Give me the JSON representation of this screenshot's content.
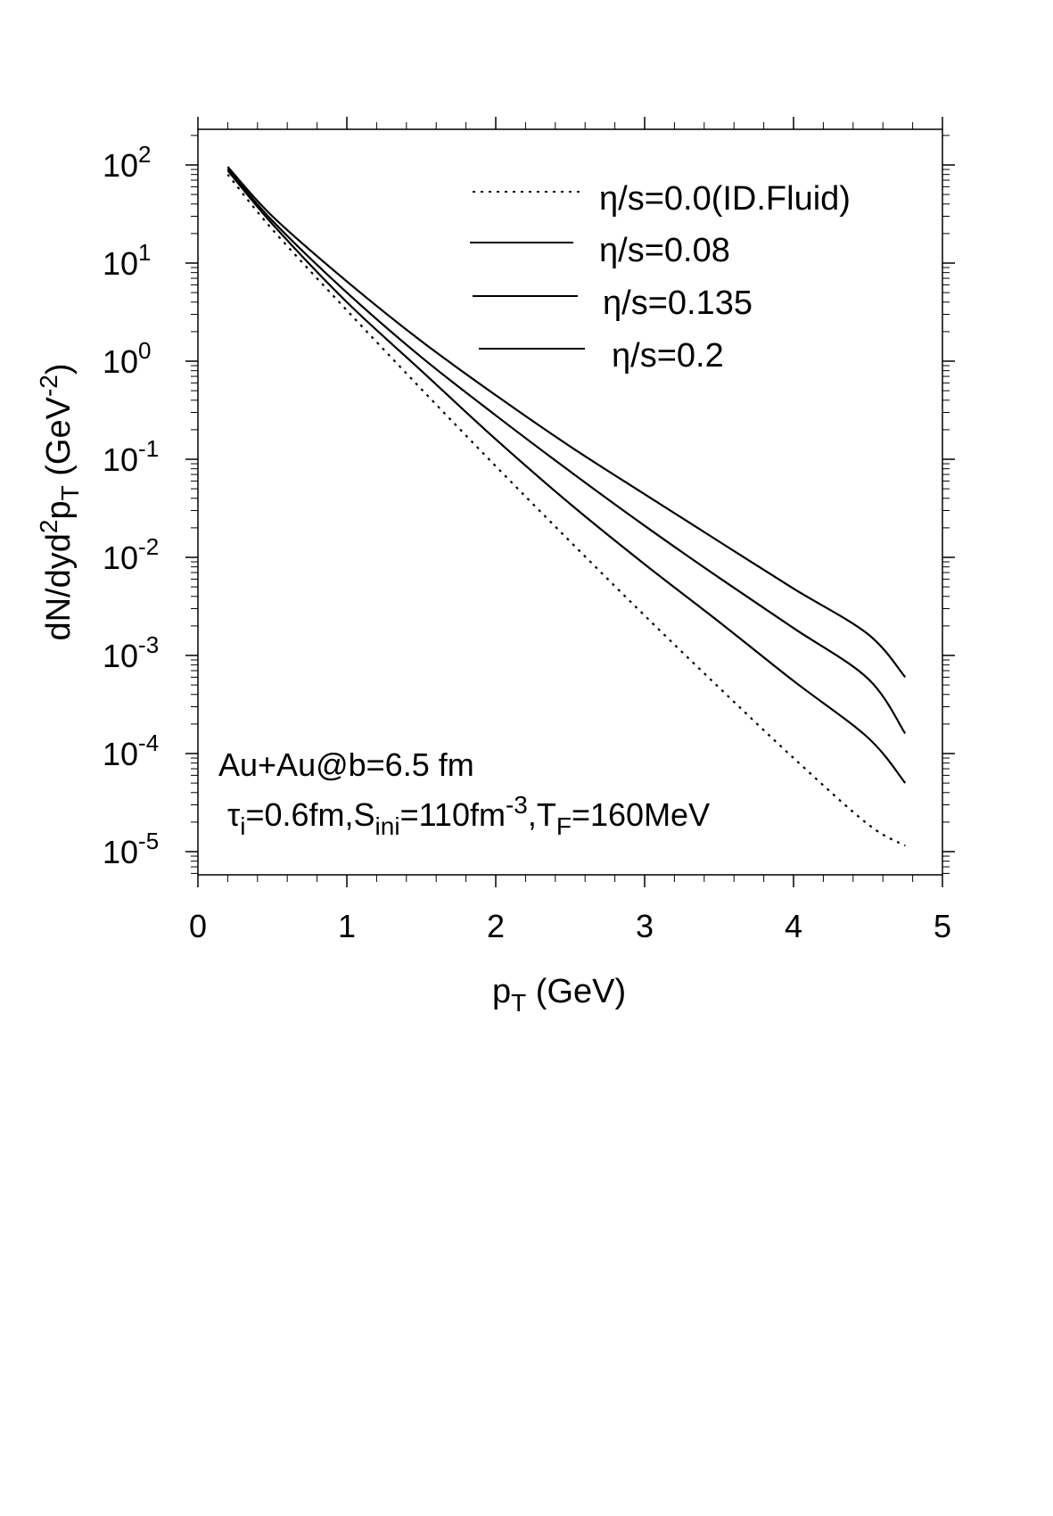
{
  "chart_data": {
    "type": "line",
    "xlabel": {
      "main": "p",
      "sub": "T",
      "rest": " (GeV)"
    },
    "ylabel": {
      "p1": "dN/dyd",
      "sup1": "2",
      "p2": "p",
      "sub1": "T",
      "p3": " (GeV",
      "sup2": "-2",
      "p4": ")"
    },
    "xlim": [
      0,
      5
    ],
    "ylim": [
      5e-06,
      220
    ],
    "y_scale": "log",
    "grid": false,
    "legend_position": "top-right",
    "x_ticks": [
      {
        "value": 0,
        "label": "0"
      },
      {
        "value": 1,
        "label": "1"
      },
      {
        "value": 2,
        "label": "2"
      },
      {
        "value": 3,
        "label": "3"
      },
      {
        "value": 4,
        "label": "4"
      },
      {
        "value": 5,
        "label": "5"
      }
    ],
    "y_ticks": [
      {
        "value": 100,
        "base": "10",
        "exp": "2"
      },
      {
        "value": 10,
        "base": "10",
        "exp": "1"
      },
      {
        "value": 1,
        "base": "10",
        "exp": "0"
      },
      {
        "value": 0.1,
        "base": "10",
        "exp": "-1"
      },
      {
        "value": 0.01,
        "base": "10",
        "exp": "-2"
      },
      {
        "value": 0.001,
        "base": "10",
        "exp": "-3"
      },
      {
        "value": 0.0001,
        "base": "10",
        "exp": "-4"
      },
      {
        "value": 1e-05,
        "base": "10",
        "exp": "-5"
      }
    ],
    "series": [
      {
        "name": "η/s=0.0(ID.Fluid)",
        "style": "dotted",
        "x": [
          0.2,
          0.5,
          1.0,
          1.5,
          2.0,
          2.5,
          3.0,
          3.5,
          4.0,
          4.5,
          4.75
        ],
        "y": [
          80,
          22,
          3.3,
          0.52,
          0.085,
          0.0145,
          0.00255,
          0.00047,
          9e-05,
          1.9e-05,
          1.15e-05
        ]
      },
      {
        "name": "η/s=0.08",
        "style": "solid",
        "x": [
          0.2,
          0.5,
          1.0,
          1.5,
          2.0,
          2.5,
          3.0,
          3.5,
          4.0,
          4.5,
          4.75
        ],
        "y": [
          88,
          25,
          4.0,
          0.8,
          0.16,
          0.035,
          0.0085,
          0.0022,
          0.00055,
          0.000145,
          5e-05
        ]
      },
      {
        "name": "η/s=0.135",
        "style": "solid",
        "x": [
          0.2,
          0.5,
          1.0,
          1.5,
          2.0,
          2.5,
          3.0,
          3.5,
          4.0,
          4.5,
          4.75
        ],
        "y": [
          92,
          27,
          5.0,
          1.1,
          0.28,
          0.075,
          0.021,
          0.0062,
          0.0019,
          0.00058,
          0.00016
        ]
      },
      {
        "name": "η/s=0.2",
        "style": "solid",
        "x": [
          0.2,
          0.5,
          1.0,
          1.5,
          2.0,
          2.5,
          3.0,
          3.5,
          4.0,
          4.5,
          4.75
        ],
        "y": [
          96,
          30,
          6.5,
          1.6,
          0.45,
          0.135,
          0.044,
          0.0145,
          0.0048,
          0.00165,
          0.0006
        ]
      }
    ],
    "annotations": {
      "line1": "Au+Au@b=6.5 fm",
      "line2": {
        "t1": "τ",
        "s1": "i",
        "t2": "=0.6fm,S",
        "s2": "ini",
        "t3": "=110fm",
        "e1": "-3",
        "t4": ",T",
        "s3": "F",
        "t5": "=160MeV"
      }
    }
  }
}
